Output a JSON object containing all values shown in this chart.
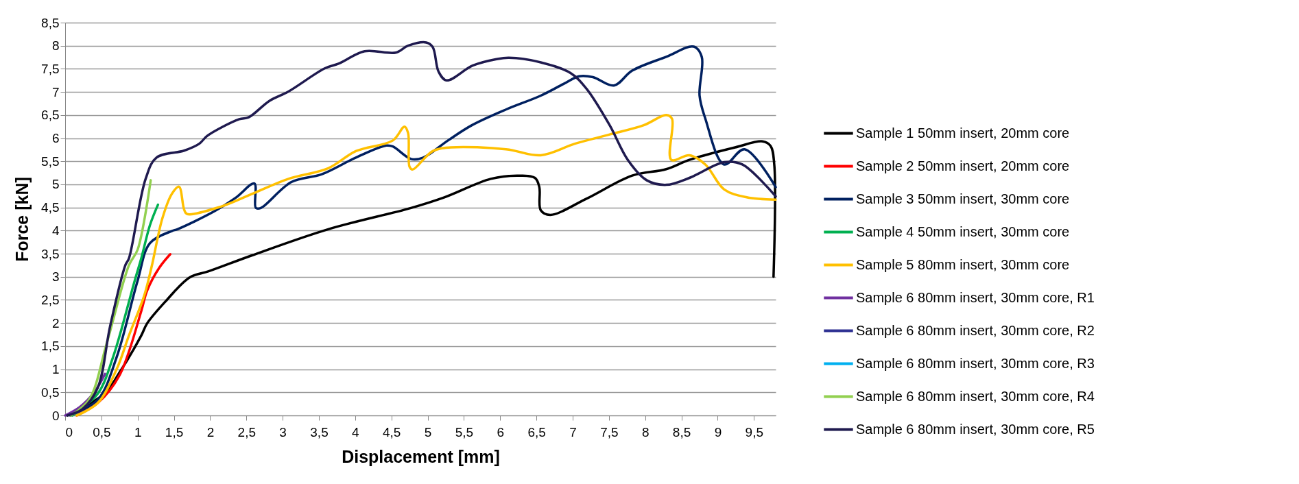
{
  "chart_data": {
    "type": "line",
    "xlabel": "Displacement [mm]",
    "ylabel": "Force [kN]",
    "xlim": [
      0,
      9.8
    ],
    "ylim": [
      0,
      8.5
    ],
    "xticks": [
      0,
      {
        "value": 0.5,
        "label": "0,5"
      },
      1,
      {
        "value": 1.5,
        "label": "1,5"
      },
      2,
      {
        "value": 2.5,
        "label": "2,5"
      },
      3,
      {
        "value": 3.5,
        "label": "3,5"
      },
      4,
      {
        "value": 4.5,
        "label": "4,5"
      },
      5,
      {
        "value": 5.5,
        "label": "5,5"
      },
      6,
      {
        "value": 6.5,
        "label": "6,5"
      },
      7,
      {
        "value": 7.5,
        "label": "7,5"
      },
      8,
      {
        "value": 8.5,
        "label": "8,5"
      },
      9,
      {
        "value": 9.5,
        "label": "9,5"
      }
    ],
    "yticks": [
      0,
      {
        "value": 0.5,
        "label": "0,5"
      },
      1,
      {
        "value": 1.5,
        "label": "1,5"
      },
      2,
      {
        "value": 2.5,
        "label": "2,5"
      },
      3,
      {
        "value": 3.5,
        "label": "3,5"
      },
      4,
      {
        "value": 4.5,
        "label": "4,5"
      },
      5,
      {
        "value": 5.5,
        "label": "5,5"
      },
      6,
      {
        "value": 6.5,
        "label": "6,5"
      },
      7,
      {
        "value": 7.5,
        "label": "7,5"
      },
      8,
      {
        "value": 8.5,
        "label": "8,5"
      }
    ],
    "grid": "y",
    "legend": "right",
    "series": [
      {
        "name": "Sample 1 50mm insert, 20mm core",
        "color": "#000000",
        "x": [
          0.03,
          0.54,
          0.75,
          1.05,
          1.13,
          1.38,
          1.72,
          1.98,
          2.57,
          3.63,
          4.77,
          5.23,
          5.87,
          6.24,
          6.48,
          6.54,
          6.56,
          6.69,
          7.19,
          7.82,
          8.29,
          8.61,
          9.24,
          9.62,
          9.73,
          9.78,
          9.77
        ],
        "values": [
          0,
          0.47,
          0.93,
          1.73,
          1.99,
          2.46,
          2.99,
          3.12,
          3.46,
          4.03,
          4.49,
          4.72,
          5.12,
          5.19,
          5.14,
          4.94,
          4.44,
          4.34,
          4.69,
          5.19,
          5.33,
          5.53,
          5.8,
          5.93,
          5.83,
          5.43,
          3.0
        ]
      },
      {
        "name": "Sample 2 50mm insert, 20mm core",
        "color": "#ff0000",
        "x": [
          0.16,
          0.45,
          0.75,
          1.05,
          1.13,
          1.3,
          1.45
        ],
        "values": [
          0,
          0.27,
          0.87,
          2.26,
          2.7,
          3.2,
          3.49
        ]
      },
      {
        "name": "Sample 3 50mm insert, 30mm core",
        "color": "#002060",
        "x": [
          0.07,
          0.45,
          0.71,
          1.0,
          1.17,
          1.47,
          1.55,
          2.06,
          2.36,
          2.61,
          2.63,
          2.7,
          3.12,
          3.54,
          4.01,
          4.43,
          4.52,
          4.77,
          4.94,
          5.28,
          5.61,
          6.08,
          6.56,
          6.87,
          7.09,
          7.28,
          7.57,
          7.82,
          8.29,
          8.67,
          8.78,
          8.75,
          8.83,
          9.09,
          9.37,
          9.8
        ],
        "values": [
          0,
          0.34,
          1.26,
          2.92,
          3.73,
          3.99,
          4.03,
          4.42,
          4.72,
          5.02,
          4.49,
          4.49,
          5.05,
          5.22,
          5.58,
          5.84,
          5.82,
          5.55,
          5.58,
          5.95,
          6.28,
          6.62,
          6.92,
          7.17,
          7.34,
          7.32,
          7.14,
          7.46,
          7.76,
          7.98,
          7.76,
          6.92,
          6.42,
          5.43,
          5.76,
          4.94
        ]
      },
      {
        "name": "Sample 4 50mm insert, 30mm core",
        "color": "#00b050",
        "x": [
          0.1,
          0.45,
          0.66,
          0.96,
          1.05,
          1.17,
          1.28
        ],
        "values": [
          0,
          0.47,
          1.26,
          2.92,
          3.4,
          4.12,
          4.56
        ]
      },
      {
        "name": "Sample 5 80mm insert, 30mm core",
        "color": "#ffc000",
        "x": [
          0.16,
          0.45,
          0.71,
          0.88,
          1.09,
          1.19,
          1.34,
          1.47,
          1.57,
          1.64,
          1.68,
          2.15,
          2.57,
          3.08,
          3.63,
          4.01,
          4.52,
          4.68,
          4.73,
          4.75,
          4.79,
          5.07,
          5.32,
          6.08,
          6.56,
          7.03,
          7.51,
          7.98,
          8.29,
          8.37,
          8.36,
          8.61,
          8.83,
          9.09,
          9.4,
          9.8
        ],
        "values": [
          0,
          0.27,
          1.0,
          1.73,
          2.59,
          3.2,
          4.26,
          4.79,
          4.95,
          4.46,
          4.36,
          4.52,
          4.79,
          5.12,
          5.35,
          5.72,
          5.95,
          6.25,
          6.11,
          5.38,
          5.32,
          5.72,
          5.8,
          5.76,
          5.63,
          5.88,
          6.08,
          6.28,
          6.5,
          6.42,
          5.53,
          5.63,
          5.43,
          4.89,
          4.72,
          4.67
        ]
      },
      {
        "name": "Sample 6 80mm insert, 30mm core, R1",
        "color": "#7030a0",
        "x": [
          0,
          0.2,
          0.4,
          0.55
        ],
        "values": [
          0,
          0.18,
          0.5,
          0.9
        ]
      },
      {
        "name": "Sample 6 80mm insert, 30mm core, R2",
        "color": "#2e3192"
      },
      {
        "name": "Sample 6 80mm insert, 30mm core, R3",
        "color": "#00b0f0"
      },
      {
        "name": "Sample 6 80mm insert, 30mm core, R4",
        "color": "#92d050",
        "x": [
          0.08,
          0.33,
          0.58,
          0.88,
          1.0,
          1.18
        ],
        "values": [
          0,
          0.34,
          1.6,
          3.25,
          3.59,
          5.09
        ]
      },
      {
        "name": "Sample 6 80mm insert, 30mm core, R5",
        "color": "#1f1a4f",
        "x": [
          0.03,
          0.24,
          0.45,
          0.62,
          0.83,
          0.88,
          1.11,
          1.26,
          1.64,
          1.85,
          1.96,
          2.4,
          2.53,
          2.82,
          3.08,
          3.58,
          3.77,
          4.13,
          4.56,
          4.73,
          4.98,
          5.07,
          5.15,
          5.26,
          5.62,
          5.95,
          6.12,
          6.56,
          6.97,
          7.19,
          7.51,
          7.76,
          8.02,
          8.29,
          8.61,
          9.09,
          9.34,
          9.8
        ],
        "values": [
          0,
          0.14,
          0.6,
          1.93,
          3.25,
          3.4,
          5.12,
          5.58,
          5.73,
          5.88,
          6.05,
          6.41,
          6.45,
          6.81,
          7.01,
          7.51,
          7.61,
          7.88,
          7.85,
          8.0,
          8.07,
          7.97,
          7.44,
          7.25,
          7.57,
          7.71,
          7.74,
          7.64,
          7.41,
          7.07,
          6.28,
          5.53,
          5.09,
          4.99,
          5.14,
          5.48,
          5.43,
          4.74
        ]
      }
    ]
  }
}
